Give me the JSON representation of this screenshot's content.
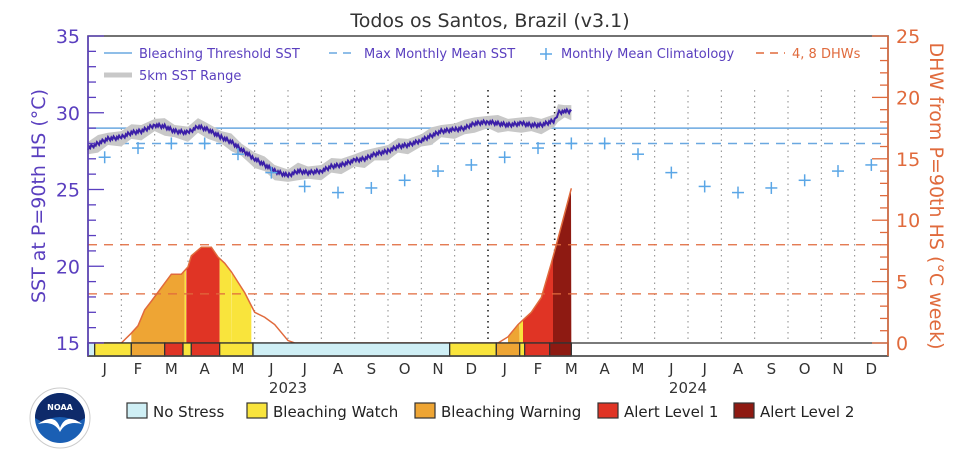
{
  "chart_data": {
    "type": "line",
    "title": "Todos os Santos, Brazil (v3.1)",
    "ylabel_left": "SST at P=90th HS (°C)",
    "ylabel_right": "DHW from P=90th HS (°C week)",
    "ylim_left": [
      15,
      35
    ],
    "ylim_right": [
      0,
      25
    ],
    "yticks_left": [
      "15",
      "20",
      "25",
      "30",
      "35"
    ],
    "yticks_right": [
      "0",
      "5",
      "10",
      "15",
      "20",
      "25"
    ],
    "x_months": [
      "J",
      "F",
      "M",
      "A",
      "M",
      "J",
      "J",
      "A",
      "S",
      "O",
      "N",
      "D",
      "J",
      "F",
      "M",
      "A",
      "M",
      "J",
      "J",
      "A",
      "S",
      "O",
      "N",
      "D"
    ],
    "x_years": [
      "2023",
      "2024"
    ],
    "grid": "dotted monthly verticals",
    "legend": {
      "bleaching_threshold": "Bleaching Threshold SST",
      "max_monthly_mean": "Max Monthly Mean SST",
      "monthly_mean_clim": "Monthly Mean Climatology",
      "dhw_lines": "4, 8 DHWs",
      "sst_range": "5km SST Range"
    },
    "bleaching_threshold_sst": 29.0,
    "max_monthly_mean_sst": 28.0,
    "dhw_reference_lines": [
      4,
      8
    ],
    "monthly_mean_climatology": [
      27.1,
      27.7,
      28.0,
      28.0,
      27.3,
      26.1,
      25.2,
      24.8,
      25.1,
      25.6,
      26.2,
      26.6,
      27.1,
      27.7,
      28.0,
      28.0,
      27.3,
      26.1,
      25.2,
      24.8,
      25.1,
      25.6,
      26.2,
      26.6
    ],
    "sst_series": {
      "name": "SST",
      "month_pos": [
        0.0,
        0.3,
        0.6,
        1.0,
        1.3,
        1.6,
        2.0,
        2.3,
        2.6,
        3.0,
        3.3,
        3.6,
        4.0,
        4.3,
        4.6,
        5.0,
        5.3,
        5.6,
        6.0,
        6.3,
        6.6,
        7.0,
        7.3,
        7.6,
        8.0,
        8.3,
        8.6,
        9.0,
        9.3,
        9.6,
        10.0,
        10.3,
        10.6,
        11.0,
        11.3,
        11.6,
        12.0,
        12.3,
        12.6,
        13.0,
        13.3,
        13.6,
        14.0,
        14.1,
        14.3,
        14.5
      ],
      "values": [
        27.7,
        28.0,
        28.3,
        28.4,
        28.7,
        28.8,
        29.2,
        29.1,
        28.8,
        28.7,
        29.1,
        28.9,
        28.4,
        28.1,
        27.6,
        27.0,
        26.6,
        26.2,
        25.9,
        26.2,
        26.1,
        26.2,
        26.5,
        26.6,
        26.9,
        27.0,
        27.3,
        27.5,
        27.8,
        27.9,
        28.2,
        28.5,
        28.8,
        28.9,
        29.0,
        29.3,
        29.4,
        29.3,
        29.2,
        29.3,
        29.2,
        29.2,
        29.5,
        30.0,
        30.1,
        30.1
      ],
      "range_halfwidth": 0.4
    },
    "dhw_series": {
      "month_pos": [
        0.0,
        1.0,
        1.3,
        1.5,
        1.7,
        1.9,
        2.2,
        2.5,
        2.8,
        3.0,
        3.1,
        3.4,
        3.7,
        3.9,
        4.1,
        4.3,
        4.7,
        5.0,
        5.3,
        5.6,
        6.0,
        6.2,
        6.5,
        7.0,
        12.0,
        12.3,
        12.6,
        12.9,
        13.1,
        13.3,
        13.6,
        13.9,
        14.1,
        14.5,
        14.5
      ],
      "values": [
        0,
        0,
        0.8,
        1.4,
        2.7,
        3.4,
        4.5,
        5.6,
        5.6,
        6.2,
        7.1,
        7.8,
        7.8,
        7.0,
        6.5,
        5.8,
        4.1,
        2.5,
        2.1,
        1.5,
        0.2,
        0,
        0,
        0,
        0,
        0,
        0.5,
        1.5,
        2.0,
        2.5,
        3.7,
        6.5,
        8.5,
        12.6,
        0
      ],
      "fill_segments": [
        {
          "from": 1.3,
          "to": 2.9,
          "level": "warning"
        },
        {
          "from": 2.9,
          "to": 2.95,
          "level": "watch"
        },
        {
          "from": 2.95,
          "to": 3.95,
          "level": "alert1"
        },
        {
          "from": 3.95,
          "to": 4.3,
          "level": "watch"
        },
        {
          "from": 4.3,
          "to": 4.9,
          "level": "watch"
        },
        {
          "from": 12.6,
          "to": 12.95,
          "level": "warning"
        },
        {
          "from": 12.95,
          "to": 13.05,
          "level": "watch"
        },
        {
          "from": 13.05,
          "to": 13.95,
          "level": "alert1"
        },
        {
          "from": 13.95,
          "to": 14.5,
          "level": "alert2"
        }
      ]
    },
    "status_bar": [
      {
        "from": 0.0,
        "to": 0.2,
        "level": "no_stress"
      },
      {
        "from": 0.2,
        "to": 1.3,
        "level": "watch"
      },
      {
        "from": 1.3,
        "to": 2.3,
        "level": "warning"
      },
      {
        "from": 2.3,
        "to": 2.85,
        "level": "alert1"
      },
      {
        "from": 2.85,
        "to": 3.1,
        "level": "watch"
      },
      {
        "from": 3.1,
        "to": 3.95,
        "level": "alert1"
      },
      {
        "from": 3.95,
        "to": 4.95,
        "level": "watch"
      },
      {
        "from": 4.95,
        "to": 10.85,
        "level": "no_stress"
      },
      {
        "from": 10.85,
        "to": 12.25,
        "level": "watch"
      },
      {
        "from": 12.25,
        "to": 12.95,
        "level": "warning"
      },
      {
        "from": 12.95,
        "to": 13.1,
        "level": "watch"
      },
      {
        "from": 13.1,
        "to": 13.85,
        "level": "alert1"
      },
      {
        "from": 13.85,
        "to": 14.5,
        "level": "alert2"
      }
    ],
    "status_legend": [
      {
        "key": "no_stress",
        "label": "No Stress",
        "color": "#cfeff5"
      },
      {
        "key": "watch",
        "label": "Bleaching Watch",
        "color": "#f9e43c"
      },
      {
        "key": "warning",
        "label": "Bleaching Warning",
        "color": "#eea534"
      },
      {
        "key": "alert1",
        "label": "Alert Level 1",
        "color": "#e03425"
      },
      {
        "key": "alert2",
        "label": "Alert Level 2",
        "color": "#8e1a12"
      }
    ],
    "colors": {
      "sst_line": "#3b1fa8",
      "sst_range": "#c8c8c8",
      "threshold": "#6aa8e0",
      "climatology": "#5aa6e6",
      "dhw": "#e06a3c",
      "left_axis": "#5a3fbf",
      "right_axis": "#e06a3c"
    }
  },
  "logo": {
    "text": "NOAA"
  }
}
